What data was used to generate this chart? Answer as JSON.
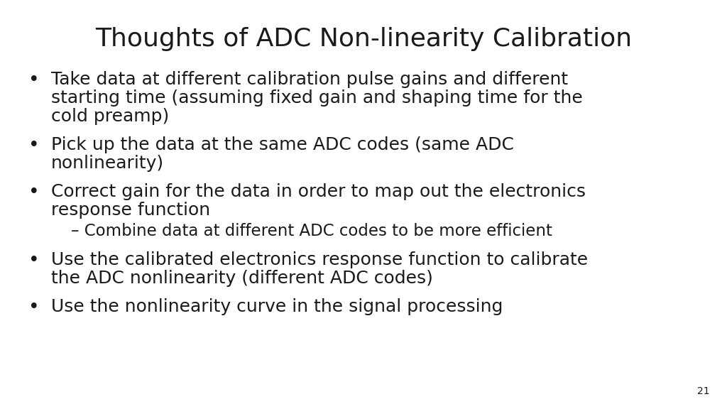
{
  "title": "Thoughts of ADC Non-linearity Calibration",
  "title_fontsize": 26,
  "title_font": "DejaVu Sans",
  "background_color": "#ffffff",
  "text_color": "#1a1a1a",
  "bullet_fontsize": 18,
  "sub_bullet_fontsize": 16.5,
  "page_number": "21",
  "page_number_fontsize": 10,
  "bullets": [
    {
      "type": "bullet",
      "lines": [
        "Take data at different calibration pulse gains and different",
        "starting time (assuming fixed gain and shaping time for the",
        "cold preamp)"
      ]
    },
    {
      "type": "bullet",
      "lines": [
        "Pick up the data at the same ADC codes (same ADC",
        "nonlinearity)"
      ]
    },
    {
      "type": "bullet",
      "lines": [
        "Correct gain for the data in order to map out the electronics",
        "response function"
      ]
    },
    {
      "type": "sub_bullet",
      "lines": [
        "– Combine data at different ADC codes to be more efficient"
      ]
    },
    {
      "type": "bullet",
      "lines": [
        "Use the calibrated electronics response function to calibrate",
        "the ADC nonlinearity (different ADC codes)"
      ]
    },
    {
      "type": "bullet",
      "lines": [
        "Use the nonlinearity curve in the signal processing"
      ]
    }
  ]
}
